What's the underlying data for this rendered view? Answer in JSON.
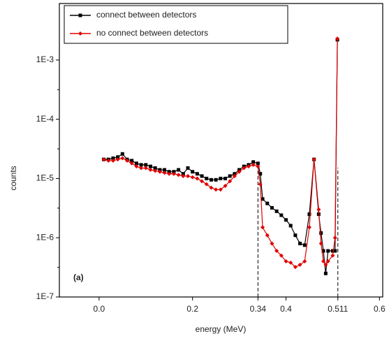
{
  "chart_data": {
    "type": "line",
    "xlabel": "energy (MeV)",
    "ylabel": "counts",
    "annotation": "(a)",
    "log_y": true,
    "legend": "upper left",
    "xlim": [
      -0.085,
      0.607
    ],
    "ylim": [
      1e-07,
      0.009
    ],
    "xticks": [
      {
        "value": 0,
        "label": "0.0"
      },
      0.2,
      0.34,
      0.4,
      0.511,
      0.6
    ],
    "yticks": [
      {
        "value": 1e-07,
        "label": "1E-7"
      },
      {
        "value": 1e-06,
        "label": "1E-6"
      },
      {
        "value": 1e-05,
        "label": "1E-5"
      },
      {
        "value": 0.0001,
        "label": "1E-4"
      },
      {
        "value": 0.001,
        "label": "1E-3"
      }
    ],
    "reference_lines": [
      0.34,
      0.511
    ],
    "x": [
      0.01,
      0.02,
      0.03,
      0.04,
      0.05,
      0.06,
      0.07,
      0.08,
      0.09,
      0.1,
      0.11,
      0.12,
      0.13,
      0.14,
      0.15,
      0.16,
      0.17,
      0.18,
      0.19,
      0.2,
      0.21,
      0.22,
      0.23,
      0.24,
      0.25,
      0.26,
      0.27,
      0.28,
      0.29,
      0.3,
      0.31,
      0.32,
      0.33,
      0.34,
      0.345,
      0.35,
      0.36,
      0.37,
      0.38,
      0.39,
      0.4,
      0.41,
      0.42,
      0.43,
      0.44,
      0.45,
      0.46,
      0.47,
      0.475,
      0.48,
      0.485,
      0.49,
      0.5,
      0.505,
      0.51
    ],
    "series": [
      {
        "name": "connect between detectors",
        "color": "#000000",
        "marker": "square",
        "values": [
          2.1e-05,
          2.1e-05,
          2.2e-05,
          2.3e-05,
          2.6e-05,
          2.1e-05,
          2e-05,
          1.8e-05,
          1.7e-05,
          1.7e-05,
          1.6e-05,
          1.5e-05,
          1.4e-05,
          1.4e-05,
          1.3e-05,
          1.3e-05,
          1.4e-05,
          1.2e-05,
          1.5e-05,
          1.3e-05,
          1.2e-05,
          1.1e-05,
          1e-05,
          9.5e-06,
          9.5e-06,
          1e-05,
          1e-05,
          1.1e-05,
          1.2e-05,
          1.4e-05,
          1.6e-05,
          1.7e-05,
          1.9e-05,
          1.8e-05,
          1.2e-05,
          4.5e-06,
          3.8e-06,
          3.2e-06,
          2.8e-06,
          2.4e-06,
          2e-06,
          1.6e-06,
          1.1e-06,
          8e-07,
          7.5e-07,
          2.5e-06,
          2.1e-05,
          2.5e-06,
          1.2e-06,
          6e-07,
          2.5e-07,
          6e-07,
          6e-07,
          6e-07,
          0.0022
        ]
      },
      {
        "name": "no connect between detectors",
        "color": "#e00000",
        "marker": "diamond",
        "values": [
          2.1e-05,
          2e-05,
          2e-05,
          2.1e-05,
          2.2e-05,
          2e-05,
          1.8e-05,
          1.6e-05,
          1.5e-05,
          1.5e-05,
          1.4e-05,
          1.35e-05,
          1.3e-05,
          1.25e-05,
          1.2e-05,
          1.2e-05,
          1.15e-05,
          1.1e-05,
          1.1e-05,
          1.05e-05,
          1e-05,
          9e-06,
          8e-06,
          7e-06,
          6.5e-06,
          6.5e-06,
          7.5e-06,
          9e-06,
          1.1e-05,
          1.3e-05,
          1.5e-05,
          1.6e-05,
          1.7e-05,
          1.6e-05,
          8e-06,
          1.5e-06,
          1.1e-06,
          8e-07,
          6e-07,
          5e-07,
          4e-07,
          3.8e-07,
          3.2e-07,
          3.5e-07,
          4e-07,
          1.5e-06,
          2.1e-05,
          3e-06,
          8e-07,
          4e-07,
          3.5e-07,
          4e-07,
          5e-07,
          1e-06,
          0.0023
        ]
      }
    ]
  }
}
